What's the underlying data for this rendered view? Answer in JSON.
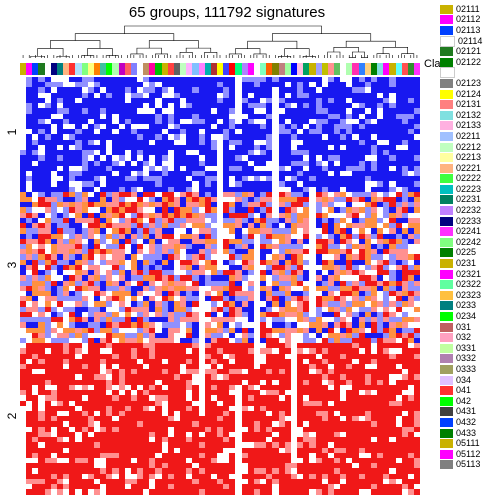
{
  "title": "65 groups, 111792 signatures",
  "class_label": "Class",
  "row_clusters": [
    {
      "label": "1",
      "frac": 0.28,
      "base": "blue"
    },
    {
      "label": "3",
      "frac": 0.36,
      "base": "mix"
    },
    {
      "label": "2",
      "frac": 0.36,
      "base": "red"
    }
  ],
  "n_cols": 65,
  "heatmap_rows": 80,
  "colors": {
    "blue": "#1818f0",
    "red": "#f01818",
    "white": "#ffffff",
    "lightblue": "#9090ff",
    "lightred": "#ff9090",
    "orange": "#ff9040"
  },
  "dendro_color": "#000000",
  "class_colors": [
    "#c9b200",
    "#ff00ff",
    "#0040ff",
    "#1f7a1f",
    "#ffffff",
    "#000080",
    "#008080",
    "#ffb380",
    "#ff3030",
    "#b0e0ff",
    "#80ff80",
    "#ffff80",
    "#ff8000",
    "#40c0a0",
    "#00ff00",
    "#b0ffb0",
    "#c000c0",
    "#ff6060",
    "#8080ff",
    "#ffffff",
    "#c09060",
    "#ff00a0",
    "#00c000",
    "#c9b200",
    "#ff4040",
    "#606060",
    "#c0ffc0",
    "#ffb0ff",
    "#80c0ff",
    "#ff80ff",
    "#00b0b0",
    "#b03030",
    "#ffff00",
    "#4040ff",
    "#ff0000",
    "#00ff80",
    "#b080ff",
    "#ff00ff",
    "#ffffff",
    "#80ffc0",
    "#ff6000",
    "#808000",
    "#c08080",
    "#a0ffa0",
    "#0000ff",
    "#ffc0e0",
    "#00a060",
    "#c9b200",
    "#a0a0ff",
    "#c0c000",
    "#ff9090",
    "#60c060",
    "#ffffff",
    "#b0ffb0",
    "#ff30b0",
    "#3080ff",
    "#ffd080",
    "#008000",
    "#80e0e0",
    "#ff00ff",
    "#c9b200",
    "#60ffff",
    "#ff5050",
    "#309030",
    "#ff30ff"
  ],
  "legend": [
    {
      "c": "#c9b200",
      "l": "02111"
    },
    {
      "c": "#ff00ff",
      "l": "02112"
    },
    {
      "c": "#0040ff",
      "l": "02113"
    },
    {
      "c": "#ffffff",
      "l": "02114"
    },
    {
      "c": "#1f7a1f",
      "l": "02121"
    },
    {
      "c": "#008000",
      "l": "02122"
    },
    {
      "c": "#ffffff",
      "l": ""
    },
    {
      "c": "#808080",
      "l": "02123"
    },
    {
      "c": "#ffff00",
      "l": "02124"
    },
    {
      "c": "#ff8080",
      "l": "02131"
    },
    {
      "c": "#80e0e0",
      "l": "02132"
    },
    {
      "c": "#ffb0e0",
      "l": "02133"
    },
    {
      "c": "#a0c0ff",
      "l": "02211"
    },
    {
      "c": "#c0ffc0",
      "l": "02212"
    },
    {
      "c": "#ffffa0",
      "l": "02213"
    },
    {
      "c": "#ffb380",
      "l": "02221"
    },
    {
      "c": "#40ff40",
      "l": "02222"
    },
    {
      "c": "#00c0c0",
      "l": "02223"
    },
    {
      "c": "#008060",
      "l": "02231"
    },
    {
      "c": "#c080ff",
      "l": "02232"
    },
    {
      "c": "#000080",
      "l": "02233"
    },
    {
      "c": "#ff30ff",
      "l": "02241"
    },
    {
      "c": "#80ff80",
      "l": "02242"
    },
    {
      "c": "#008000",
      "l": "0225"
    },
    {
      "c": "#c9b200",
      "l": "0231"
    },
    {
      "c": "#ff00ff",
      "l": "02321"
    },
    {
      "c": "#60ffa0",
      "l": "02322"
    },
    {
      "c": "#ffc040",
      "l": "02323"
    },
    {
      "c": "#008080",
      "l": "0233"
    },
    {
      "c": "#00ff00",
      "l": "0234"
    },
    {
      "c": "#c06060",
      "l": "031"
    },
    {
      "c": "#ffa0c0",
      "l": "032"
    },
    {
      "c": "#c0ffa0",
      "l": "0331"
    },
    {
      "c": "#b080b0",
      "l": "0332"
    },
    {
      "c": "#a0a060",
      "l": "0333"
    },
    {
      "c": "#e0c0ff",
      "l": "034"
    },
    {
      "c": "#ff3030",
      "l": "041"
    },
    {
      "c": "#00ff00",
      "l": "042"
    },
    {
      "c": "#404040",
      "l": "0431"
    },
    {
      "c": "#0040ff",
      "l": "0432"
    },
    {
      "c": "#008000",
      "l": "0433"
    },
    {
      "c": "#c9b200",
      "l": "05111"
    },
    {
      "c": "#ff00ff",
      "l": "05112"
    },
    {
      "c": "#808080",
      "l": "05113"
    }
  ]
}
